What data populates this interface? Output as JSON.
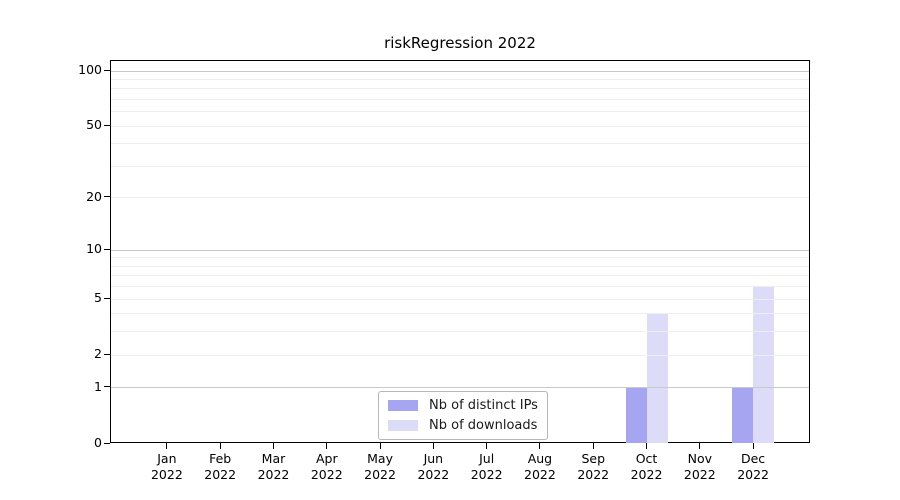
{
  "chart_data": {
    "type": "bar",
    "title": "riskRegression 2022",
    "categories": [
      "Jan",
      "Feb",
      "Mar",
      "Apr",
      "May",
      "Jun",
      "Jul",
      "Aug",
      "Sep",
      "Oct",
      "Nov",
      "Dec"
    ],
    "year_label": "2022",
    "series": [
      {
        "name": "Nb of distinct IPs",
        "color": "#a5a5f2",
        "values": [
          0,
          0,
          0,
          0,
          0,
          0,
          0,
          0,
          0,
          1,
          0,
          1
        ]
      },
      {
        "name": "Nb of downloads",
        "color": "#dcdcf9",
        "values": [
          0,
          0,
          0,
          0,
          0,
          0,
          0,
          0,
          0,
          4,
          0,
          6
        ]
      }
    ],
    "xlabel": "",
    "ylabel": "",
    "y_axis": {
      "scale": "log1p",
      "tick_values": [
        0,
        1,
        2,
        5,
        10,
        20,
        50,
        100
      ],
      "minor_grid_values": [
        2,
        3,
        4,
        5,
        6,
        7,
        8,
        9,
        20,
        30,
        40,
        50,
        60,
        70,
        80,
        90
      ],
      "major_grid_values": [
        1,
        10,
        100
      ],
      "ylim": [
        0,
        113
      ]
    },
    "grid": true,
    "grid_minor_color": "#efefef",
    "grid_major_color": "#c9c9c9",
    "legend": {
      "position": "bottom-center"
    }
  }
}
